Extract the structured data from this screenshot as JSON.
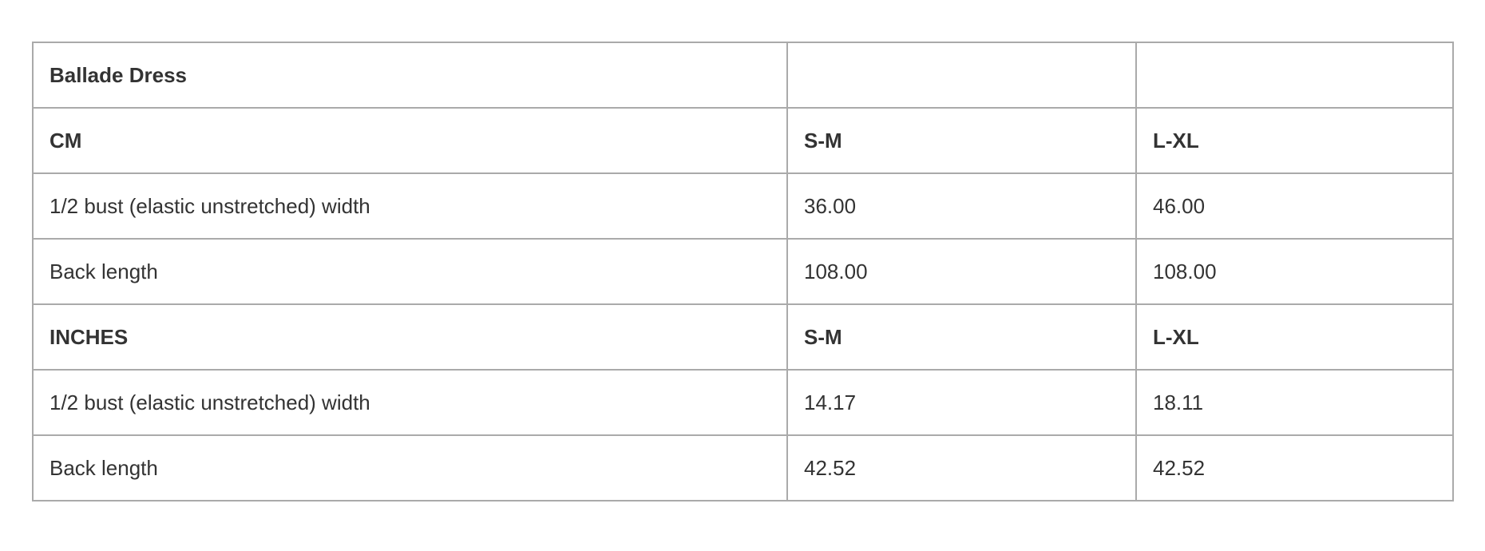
{
  "table": {
    "rows": [
      {
        "bold": true,
        "cells": [
          "Ballade Dress",
          "",
          ""
        ]
      },
      {
        "bold": true,
        "cells": [
          "CM",
          "S-M",
          "L-XL"
        ]
      },
      {
        "bold": false,
        "cells": [
          "1/2 bust (elastic unstretched) width",
          "36.00",
          "46.00"
        ]
      },
      {
        "bold": false,
        "cells": [
          "Back length",
          "108.00",
          "108.00"
        ]
      },
      {
        "bold": true,
        "cells": [
          "INCHES",
          "S-M",
          "L-XL"
        ]
      },
      {
        "bold": false,
        "cells": [
          "1/2 bust (elastic unstretched) width",
          "14.17",
          "18.11"
        ]
      },
      {
        "bold": false,
        "cells": [
          "Back length",
          "42.52",
          "42.52"
        ]
      }
    ]
  }
}
